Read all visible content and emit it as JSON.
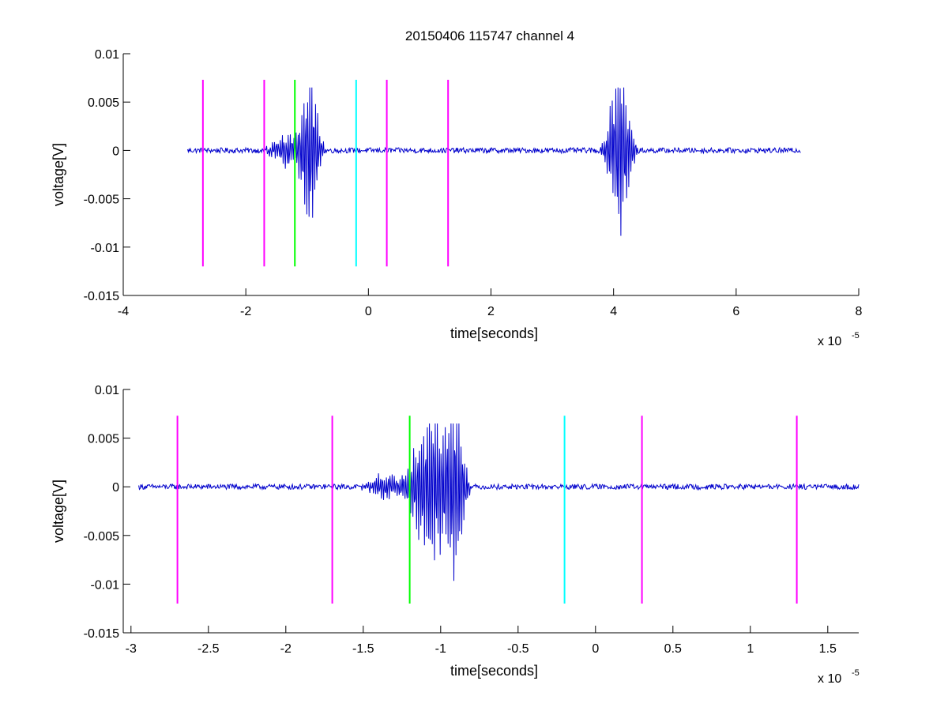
{
  "figure_title": "20150406 115747 channel 4",
  "colors": {
    "trace": "#0000cc",
    "marker_magenta": "#ff00ff",
    "marker_green": "#00ff00",
    "marker_cyan": "#00ffff",
    "axes": "#000000"
  },
  "chart_data": [
    {
      "type": "line",
      "title": "20150406 115747 channel 4",
      "xlabel": "time[seconds]",
      "ylabel": "voltage[V]",
      "x_exponent_label": "x 10",
      "x_exponent": "-5",
      "xlim": [
        -4,
        8
      ],
      "ylim": [
        -0.015,
        0.01
      ],
      "xticks": [
        -4,
        -2,
        0,
        2,
        4,
        6,
        8
      ],
      "xtick_labels": [
        "-4",
        "-2",
        "0",
        "2",
        "4",
        "6",
        "8"
      ],
      "yticks": [
        -0.015,
        -0.01,
        -0.005,
        0,
        0.005,
        0.01
      ],
      "ytick_labels": [
        "-0.015",
        "-0.01",
        "-0.005",
        "0",
        "0.005",
        "0.01"
      ],
      "grid": false,
      "series": [
        {
          "color": "#0000cc",
          "x_range": [
            -2.95,
            7.05
          ],
          "baseline": 0,
          "noise_amplitude": 0.0003,
          "bursts": [
            {
              "center": -1.3,
              "width": 0.3,
              "amplitude": 0.002
            },
            {
              "center": -0.95,
              "width": 0.15,
              "amplitude": 0.0095
            },
            {
              "center": 4.1,
              "width": 0.2,
              "amplitude": 0.01
            }
          ]
        }
      ],
      "markers": [
        {
          "x": -2.7,
          "color": "#ff00ff",
          "y": [
            -0.012,
            0.0073
          ]
        },
        {
          "x": -1.7,
          "color": "#ff00ff",
          "y": [
            -0.012,
            0.0073
          ]
        },
        {
          "x": -1.2,
          "color": "#00ff00",
          "y": [
            -0.012,
            0.0073
          ]
        },
        {
          "x": -0.2,
          "color": "#00ffff",
          "y": [
            -0.012,
            0.0073
          ]
        },
        {
          "x": 0.3,
          "color": "#ff00ff",
          "y": [
            -0.012,
            0.0073
          ]
        },
        {
          "x": 1.3,
          "color": "#ff00ff",
          "y": [
            -0.012,
            0.0073
          ]
        }
      ]
    },
    {
      "type": "line",
      "title": "",
      "xlabel": "time[seconds]",
      "ylabel": "voltage[V]",
      "x_exponent_label": "x 10",
      "x_exponent": "-5",
      "xlim": [
        -3.05,
        1.7
      ],
      "ylim": [
        -0.015,
        0.01
      ],
      "xticks": [
        -3,
        -2.5,
        -2,
        -1.5,
        -1,
        -0.5,
        0,
        0.5,
        1,
        1.5
      ],
      "xtick_labels": [
        "-3",
        "-2.5",
        "-2",
        "-1.5",
        "-1",
        "-0.5",
        "0",
        "0.5",
        "1",
        "1.5"
      ],
      "yticks": [
        -0.015,
        -0.01,
        -0.005,
        0,
        0.005,
        0.01
      ],
      "ytick_labels": [
        "-0.015",
        "-0.01",
        "-0.005",
        "0",
        "0.005",
        "0.01"
      ],
      "grid": false,
      "series": [
        {
          "color": "#0000cc",
          "x_range": [
            -2.95,
            1.7
          ],
          "baseline": 0,
          "noise_amplitude": 0.0003,
          "bursts": [
            {
              "center": -1.35,
              "width": 0.12,
              "amplitude": 0.0015
            },
            {
              "center": -1.05,
              "width": 0.14,
              "amplitude": 0.01
            },
            {
              "center": -0.9,
              "width": 0.06,
              "amplitude": 0.008
            }
          ]
        }
      ],
      "markers": [
        {
          "x": -2.7,
          "color": "#ff00ff",
          "y": [
            -0.012,
            0.0073
          ]
        },
        {
          "x": -1.7,
          "color": "#ff00ff",
          "y": [
            -0.012,
            0.0073
          ]
        },
        {
          "x": -1.2,
          "color": "#00ff00",
          "y": [
            -0.012,
            0.0073
          ]
        },
        {
          "x": -0.2,
          "color": "#00ffff",
          "y": [
            -0.012,
            0.0073
          ]
        },
        {
          "x": 0.3,
          "color": "#ff00ff",
          "y": [
            -0.012,
            0.0073
          ]
        },
        {
          "x": 1.3,
          "color": "#ff00ff",
          "y": [
            -0.012,
            0.0073
          ]
        }
      ]
    }
  ]
}
